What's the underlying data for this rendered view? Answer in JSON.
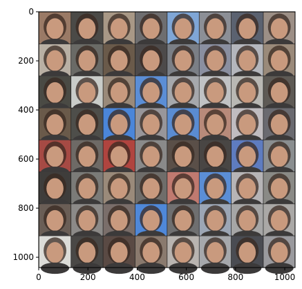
{
  "figure": {
    "image_description_icon": "face-grid-image",
    "grid": {
      "rows": 8,
      "cols": 8
    },
    "background_color": "#ffffff"
  },
  "chart_data": {
    "type": "image",
    "xlim": [
      0,
      1042
    ],
    "ylim": [
      1042,
      0
    ],
    "x_ticks": [
      {
        "value": 0,
        "label": "0"
      },
      {
        "value": 200,
        "label": "200"
      },
      {
        "value": 400,
        "label": "400"
      },
      {
        "value": 600,
        "label": "600"
      },
      {
        "value": 800,
        "label": "800"
      },
      {
        "value": 1000,
        "label": "1000"
      }
    ],
    "y_ticks": [
      {
        "value": 0,
        "label": "0"
      },
      {
        "value": 200,
        "label": "200"
      },
      {
        "value": 400,
        "label": "400"
      },
      {
        "value": 600,
        "label": "600"
      },
      {
        "value": 800,
        "label": "800"
      },
      {
        "value": 1000,
        "label": "1000"
      }
    ],
    "tiles": [
      [
        "#9a7a66",
        "#4b4a47",
        "#a89886",
        "#6e6e70",
        "#7fa6d6",
        "#8c8f96",
        "#5b6270",
        "#9c8f86"
      ],
      [
        "#b9b0a4",
        "#6a6a66",
        "#6a5a4a",
        "#4d4a4a",
        "#7b7f86",
        "#8a8fa0",
        "#b4b6bc",
        "#9a8a7a"
      ],
      [
        "#4a4a44",
        "#c9ccc9",
        "#9a8a7a",
        "#5b8ed6",
        "#a6a8ac",
        "#c0c2c4",
        "#b9b8b4",
        "#5e5a55"
      ],
      [
        "#6a5a4a",
        "#4e4e4a",
        "#4b86d9",
        "#98969a",
        "#5a8cd2",
        "#b88a7a",
        "#c0bcc0",
        "#6a6a70"
      ],
      [
        "#a64a44",
        "#6e6a66",
        "#b0443f",
        "#8a8a8a",
        "#5a4f48",
        "#494644",
        "#5e7cc0",
        "#8a8e90"
      ],
      [
        "#3f3d3b",
        "#7b7b78",
        "#9a8a7a",
        "#6f6d6a",
        "#c07a70",
        "#5b8ed6",
        "#b6b4b6",
        "#8a8a86"
      ],
      [
        "#6a5e56",
        "#8c8a88",
        "#7a6e6a",
        "#4f88d9",
        "#6f6f70",
        "#9ca6b5",
        "#a6a6a6",
        "#aaa8a6"
      ],
      [
        "#dcdcd8",
        "#4a4846",
        "#5a4a44",
        "#8a7a6e",
        "#b9b4b0",
        "#a6a8ac",
        "#4a4c52",
        "#9a9a9e"
      ]
    ]
  }
}
